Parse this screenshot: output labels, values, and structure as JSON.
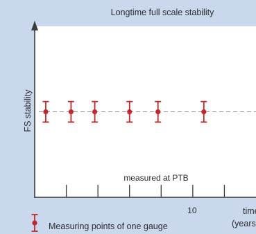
{
  "chart_data": {
    "type": "scatter",
    "title": "Longtime full scale stability",
    "xlabel": "time",
    "xlabel_unit": "(years)",
    "ylabel": "FS stability",
    "annotation": "measured at PTB",
    "x_tick_label": "10",
    "xlim": [
      0,
      14
    ],
    "ylim": [
      -1,
      1
    ],
    "reference_line": 0,
    "grid": false,
    "series": [
      {
        "name": "Measuring points of one gauge",
        "color": "#c0282d",
        "points": [
          {
            "x": 0.7,
            "y": 0,
            "error": 0.12
          },
          {
            "x": 2.3,
            "y": 0,
            "error": 0.12
          },
          {
            "x": 3.8,
            "y": 0,
            "error": 0.12
          },
          {
            "x": 6.0,
            "y": 0,
            "error": 0.12
          },
          {
            "x": 7.8,
            "y": 0,
            "error": 0.12
          },
          {
            "x": 10.7,
            "y": 0,
            "error": 0.12
          }
        ]
      }
    ],
    "legend_placement": "bottom-left"
  }
}
